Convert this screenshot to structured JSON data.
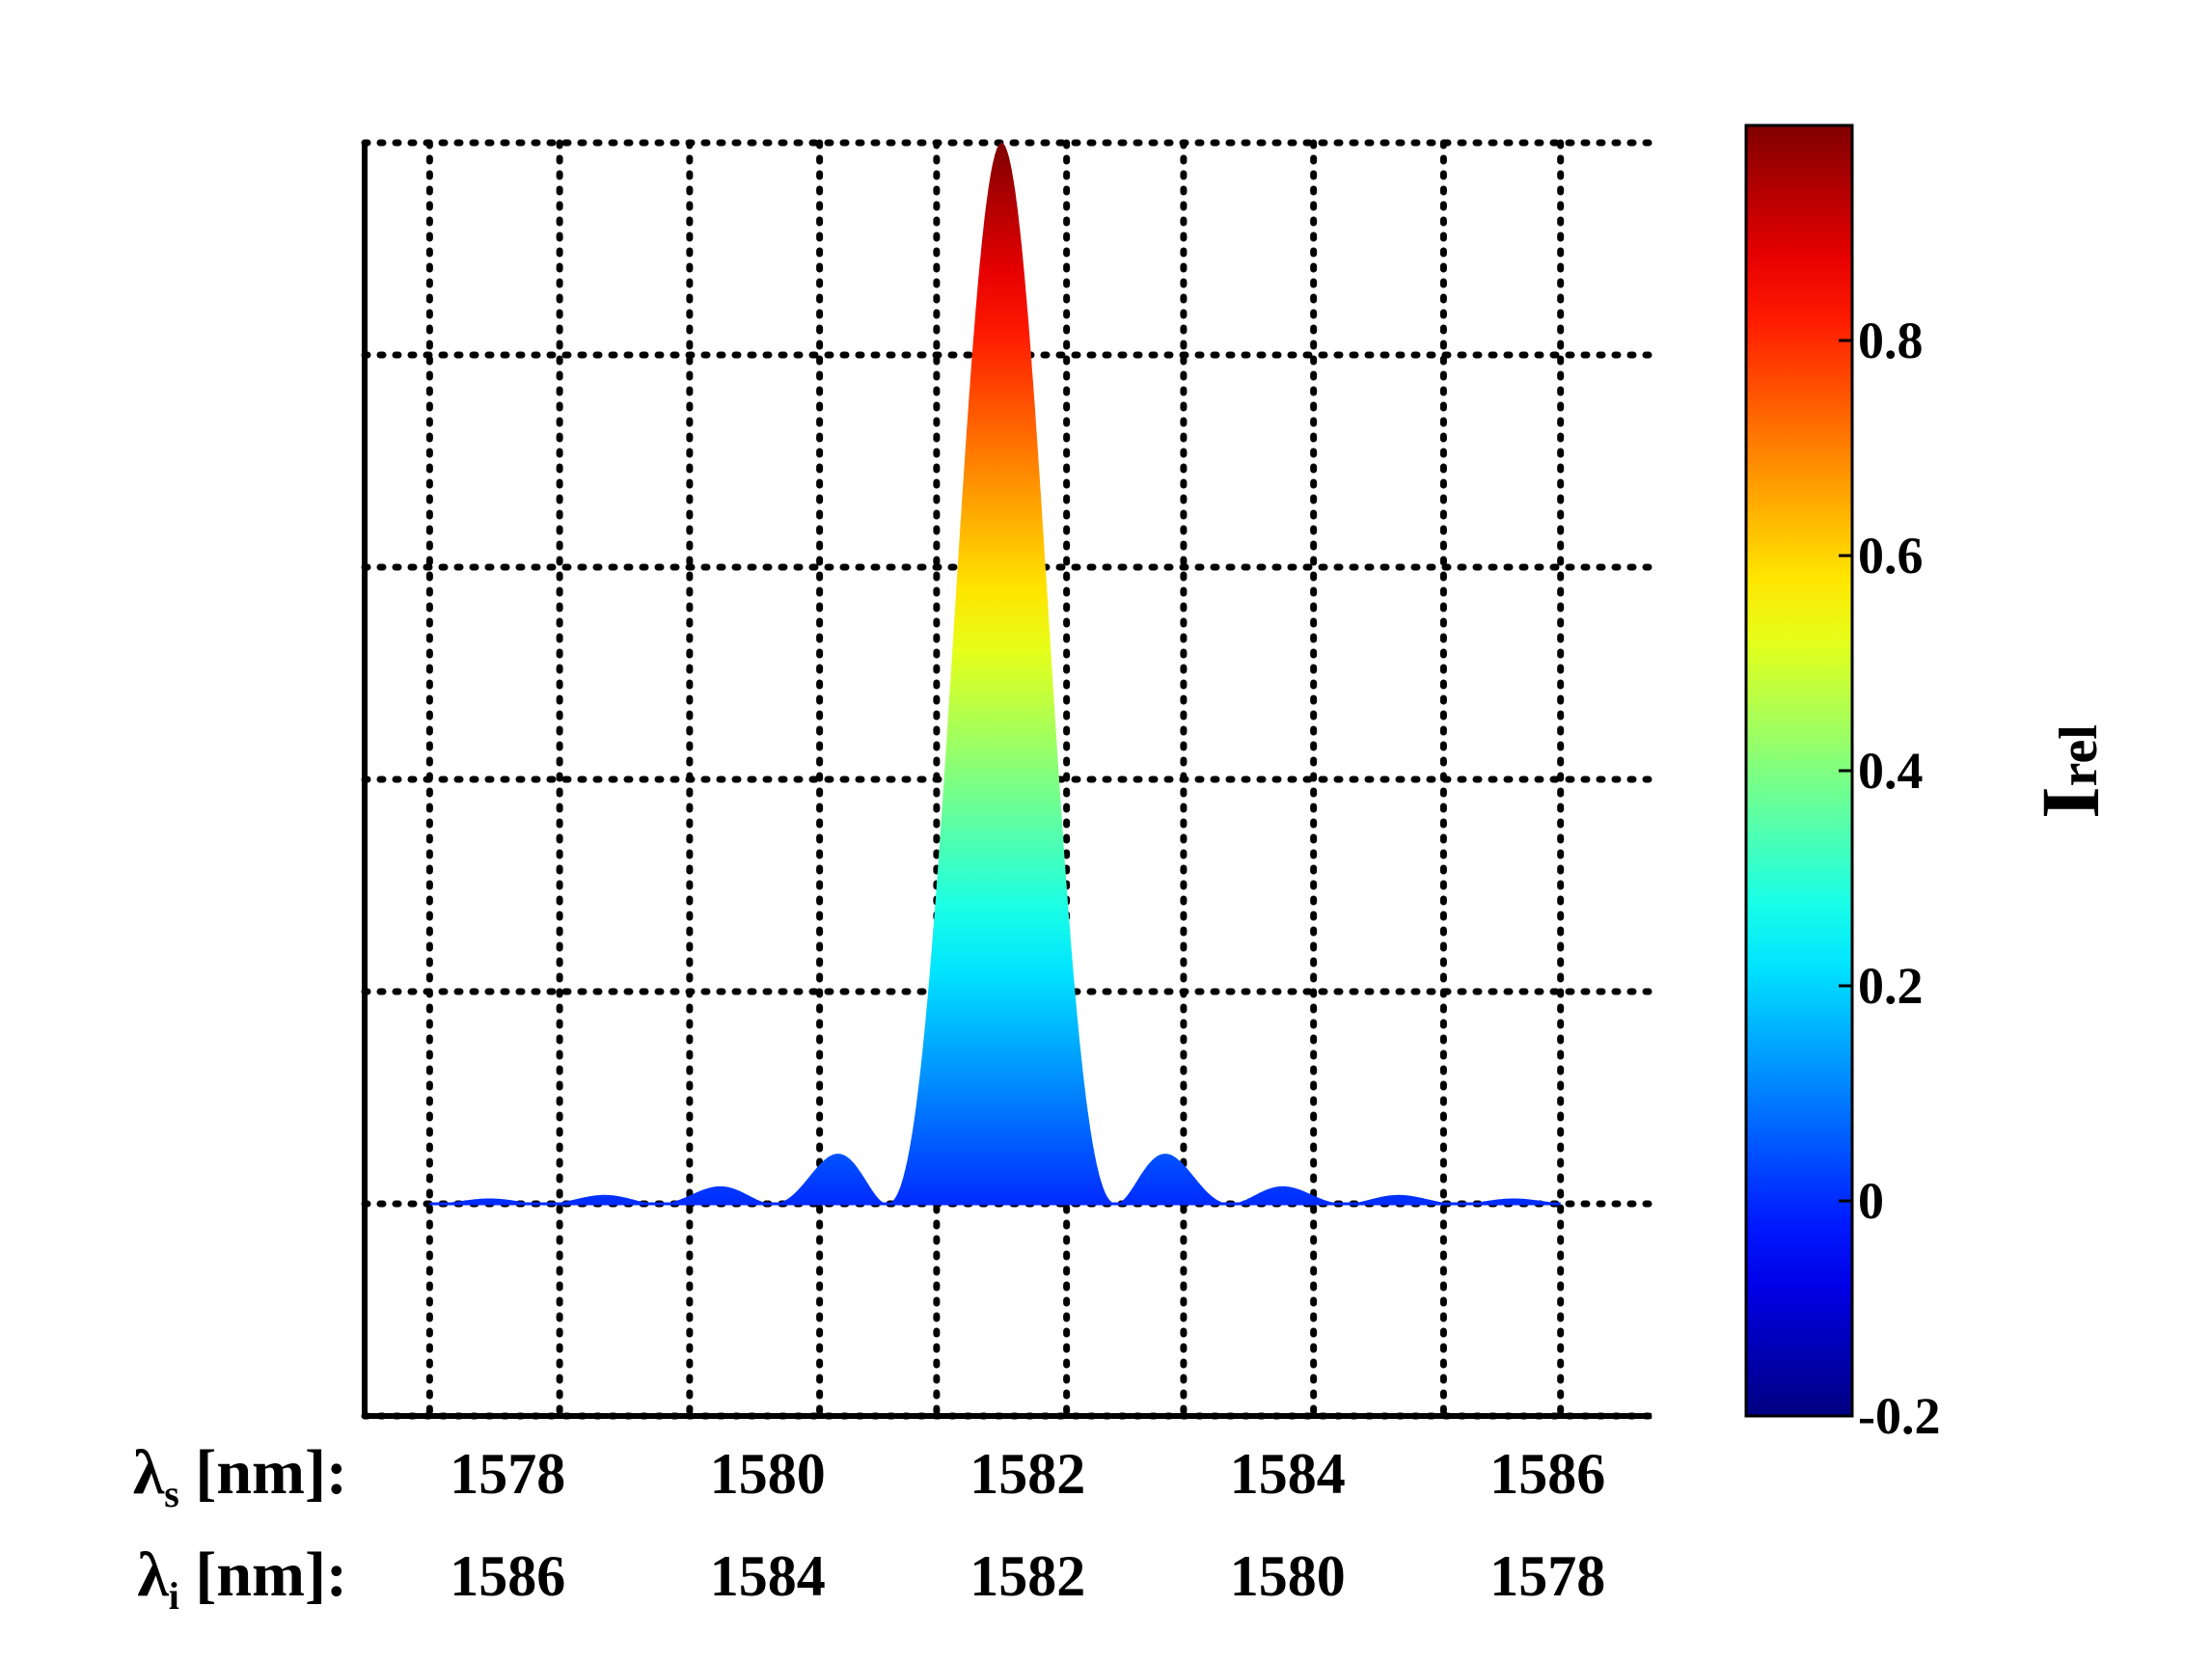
{
  "chart_data": {
    "type": "area",
    "title": "",
    "plot": {
      "x_range_nm": [
        1576.9,
        1586.8
      ],
      "y_range": [
        -0.2,
        1.0
      ],
      "grid": true,
      "grid_style": "dotted",
      "x_grid_lines_nm": [
        1577.4,
        1578.4,
        1579.4,
        1580.4,
        1581.3,
        1582.3,
        1583.2,
        1584.2,
        1585.2,
        1586.1
      ],
      "y_grid_lines": [
        -0.2,
        0.0,
        0.2,
        0.4,
        0.6,
        0.8,
        1.0
      ],
      "series": [
        {
          "function": "sinc^2",
          "peak_x_nm": 1581.8,
          "peak_y": 1.0,
          "first_zero_offset_nm": 0.88,
          "x_start_nm": 1577.4,
          "x_end_nm": 1586.1,
          "fill": "jet-colormap-by-value",
          "side_lobes": [
            {
              "x_nm": 1580.4,
              "y": 0.045
            },
            {
              "x_nm": 1583.2,
              "y": 0.045
            },
            {
              "x_nm": 1579.4,
              "y": 0.016
            },
            {
              "x_nm": 1584.2,
              "y": 0.016
            },
            {
              "x_nm": 1578.4,
              "y": 0.008
            },
            {
              "x_nm": 1585.2,
              "y": 0.008
            }
          ]
        }
      ]
    },
    "x_axes": [
      {
        "label_symbol": "λ",
        "label_subscript": "s",
        "label_suffix": " [nm]:",
        "ticks": [
          "1578",
          "1580",
          "1582",
          "1584",
          "1586"
        ],
        "tick_positions_nm": [
          1578,
          1580,
          1582,
          1584,
          1586
        ]
      },
      {
        "label_symbol": "λ",
        "label_subscript": "i",
        "label_suffix": " [nm]:",
        "ticks": [
          "1586",
          "1584",
          "1582",
          "1580",
          "1578"
        ],
        "tick_positions_nm": [
          1578,
          1580,
          1582,
          1584,
          1586
        ]
      }
    ],
    "colorbar": {
      "colormap": "jet",
      "range": [
        -0.2,
        1.0
      ],
      "ticks": [
        "-0.2",
        "0",
        "0.2",
        "0.4",
        "0.6",
        "0.8"
      ],
      "tick_values": [
        -0.2,
        0.0,
        0.2,
        0.4,
        0.6,
        0.8
      ],
      "title_main": "I",
      "title_sub": "rel"
    }
  }
}
